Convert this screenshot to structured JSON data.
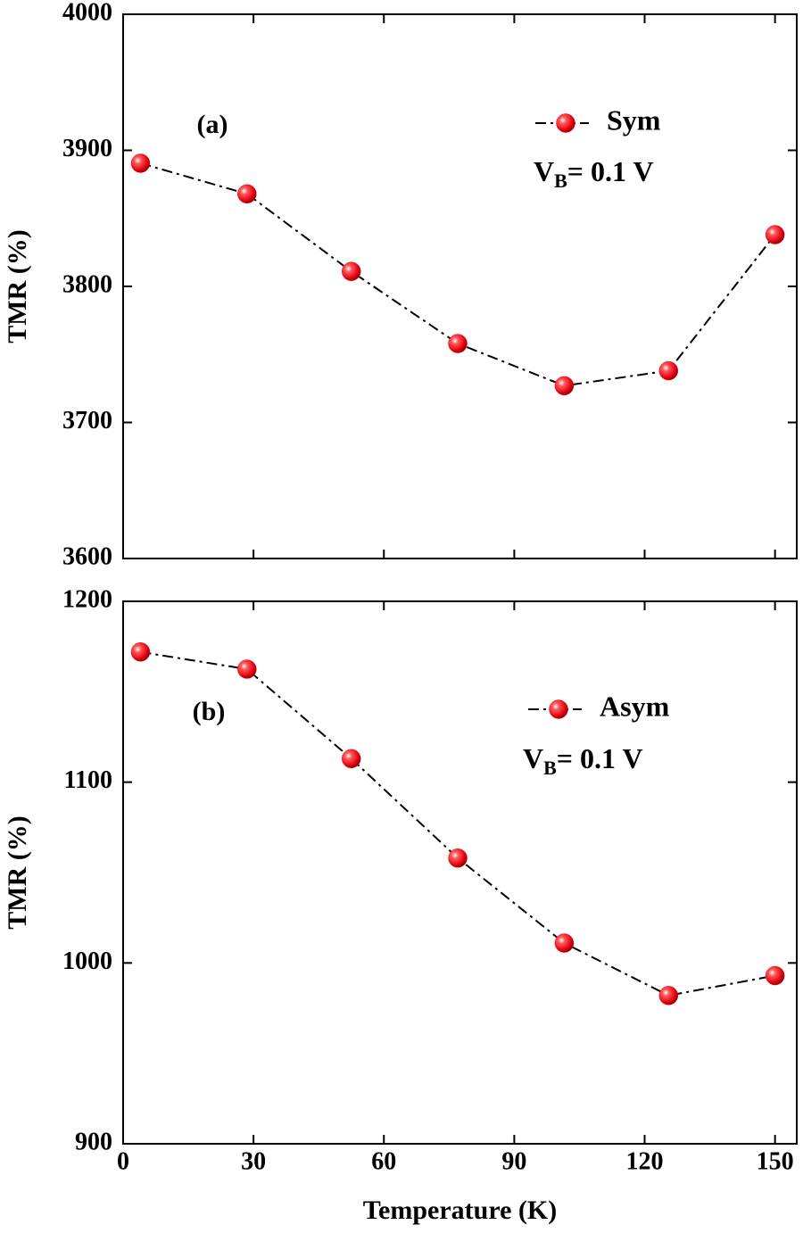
{
  "chart_data": [
    {
      "type": "line",
      "annotation": "(a)",
      "x": [
        4,
        28.5,
        52.5,
        77,
        101.5,
        125.5,
        150
      ],
      "series": [
        {
          "name": "Sym",
          "color": "#e8141a",
          "values": [
            3890.5,
            3868,
            3811,
            3758,
            3727,
            3738,
            3838
          ]
        }
      ],
      "bias_label": {
        "main": "V",
        "sub": "B",
        "rest": "= 0.1 V"
      },
      "y_label": "TMR (%)",
      "xlim": [
        0,
        155
      ],
      "xticks": [
        0,
        30,
        60,
        90,
        120,
        150
      ],
      "xtick_labels": false,
      "ylim": [
        3600,
        4000
      ],
      "yticks": [
        3600,
        3700,
        3800,
        3900,
        4000
      ]
    },
    {
      "type": "line",
      "annotation": "(b)",
      "x": [
        4,
        28.5,
        52.5,
        77,
        101.5,
        125.5,
        150
      ],
      "series": [
        {
          "name": "Asym",
          "color": "#e8141a",
          "values": [
            1172,
            1162.5,
            1113,
            1058,
            1011,
            982,
            993
          ]
        }
      ],
      "bias_label": {
        "main": "V",
        "sub": "B",
        "rest": "= 0.1 V"
      },
      "y_label": "TMR (%)",
      "x_label": "Temperature (K)",
      "xlim": [
        0,
        155
      ],
      "xticks": [
        0,
        30,
        60,
        90,
        120,
        150
      ],
      "xtick_labels": true,
      "ylim": [
        900,
        1200
      ],
      "yticks": [
        900,
        1000,
        1100,
        1200
      ]
    }
  ]
}
